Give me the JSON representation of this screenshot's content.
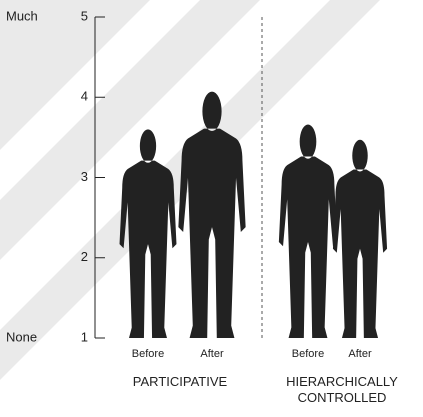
{
  "chart_data": {
    "type": "pictograph",
    "annotations": {
      "top": "Much",
      "bottom": "None"
    },
    "categories": [
      "PARTICIPATIVE",
      "HIERARCHICALLY CONTROLLED"
    ],
    "series": [
      {
        "name": "Before",
        "color": "#222222",
        "values": [
          3.6,
          3.66
        ]
      },
      {
        "name": "After",
        "color": "#222222",
        "values": [
          4.07,
          3.47
        ]
      }
    ],
    "ylim": [
      1,
      5
    ],
    "yticks": [
      1,
      2,
      3,
      4,
      5
    ]
  }
}
